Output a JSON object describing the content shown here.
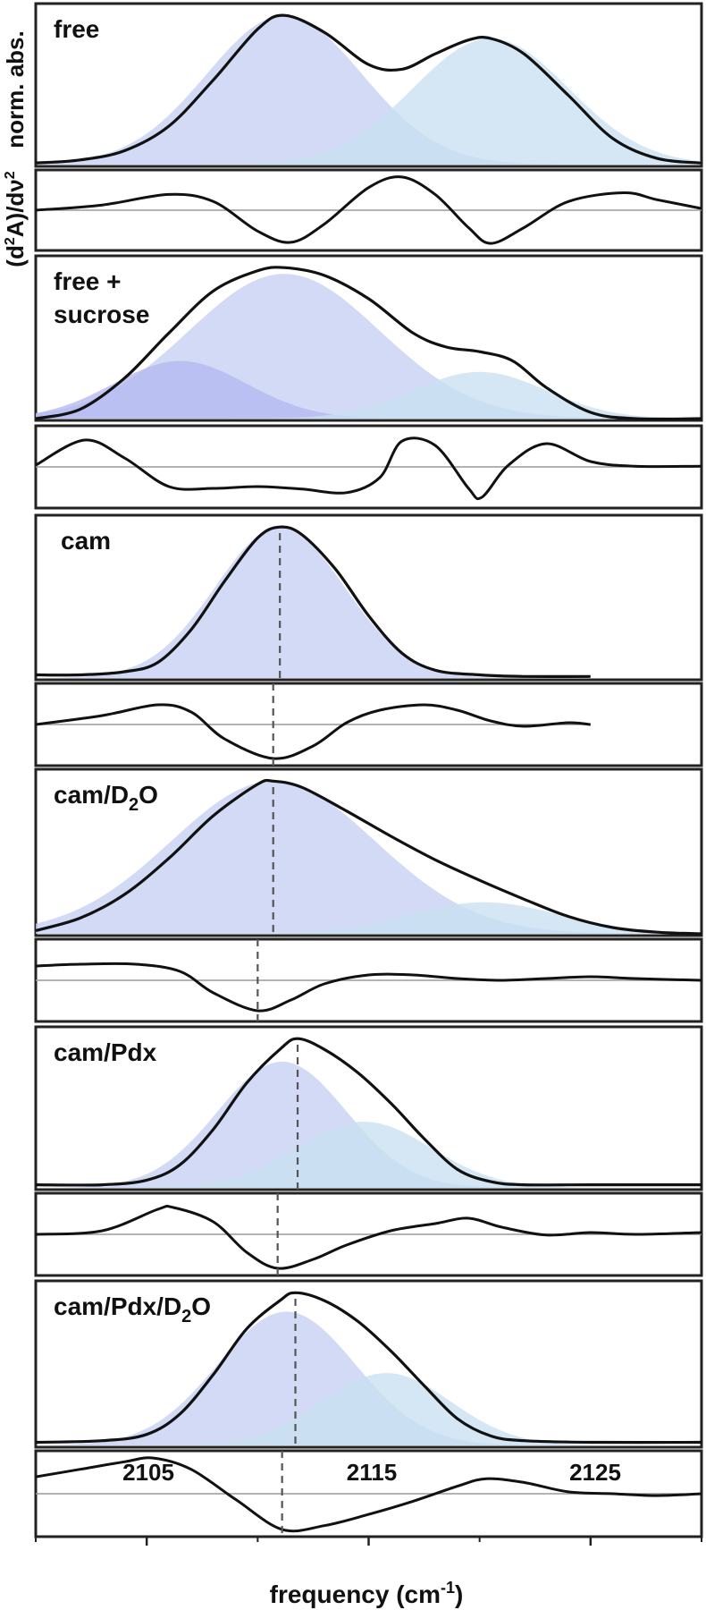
{
  "chart_data": {
    "type": "area",
    "xlabel": "frequency (cm",
    "xlabel_sup": "-1",
    "xlabel_end": ")",
    "ylabel_top": "norm. abs.",
    "ylabel_bottom_main": "(d",
    "ylabel_bottom_sup": "2",
    "ylabel_bottom_mid": "A)/d",
    "ylabel_bottom_nu": "ν",
    "ylabel_bottom_sup2": "2",
    "xlim": [
      2100,
      2130
    ],
    "xticks": [
      "2105",
      "2115",
      "2125"
    ],
    "xtick_values": [
      2105,
      2115,
      2125
    ],
    "fill_colors": {
      "component_main": "#c5d0f2",
      "component_side": "#c9e0f2",
      "component_violet": "#b3b8f0",
      "overlap": "#a3bde9"
    },
    "panels": [
      {
        "label": "free",
        "label_sub": "",
        "label_line2": "",
        "marker_abs": null,
        "marker_deriv": null,
        "components": [
          {
            "center": 2111.2,
            "width": 3.5,
            "amp": 0.97,
            "color": "component_main"
          },
          {
            "center": 2120.5,
            "width": 3.5,
            "amp": 0.82,
            "color": "component_side"
          }
        ],
        "abs_curve": {
          "x": [
            2100,
            2102,
            2104,
            2106,
            2108,
            2110,
            2111.2,
            2113,
            2115,
            2116.5,
            2118,
            2119.5,
            2120.5,
            2122,
            2124,
            2126,
            2128,
            2130
          ],
          "y": [
            0.01,
            0.03,
            0.09,
            0.25,
            0.55,
            0.88,
            0.97,
            0.86,
            0.65,
            0.62,
            0.72,
            0.81,
            0.82,
            0.72,
            0.45,
            0.17,
            0.04,
            0.01
          ]
        },
        "deriv_curve": {
          "x": [
            2100,
            2103,
            2106,
            2108,
            2110,
            2111.5,
            2113,
            2115,
            2116.5,
            2118,
            2119.5,
            2120.5,
            2122,
            2124,
            2126.5,
            2128,
            2130
          ],
          "y": [
            0.0,
            0.15,
            0.45,
            0.25,
            -0.6,
            -0.92,
            -0.4,
            0.65,
            0.95,
            0.45,
            -0.5,
            -0.95,
            -0.5,
            0.25,
            0.5,
            0.3,
            0.05
          ]
        }
      },
      {
        "label": "free +",
        "label_sub": "",
        "label_line2": "sucrose",
        "marker_abs": null,
        "marker_deriv": null,
        "components": [
          {
            "center": 2111.2,
            "width": 4.3,
            "amp": 0.93,
            "color": "component_main"
          },
          {
            "center": 2106.5,
            "width": 3.0,
            "amp": 0.37,
            "color": "component_violet"
          },
          {
            "center": 2120.0,
            "width": 3.0,
            "amp": 0.3,
            "color": "component_side"
          }
        ],
        "abs_curve": {
          "x": [
            2100,
            2102,
            2104,
            2106,
            2108,
            2110,
            2111.2,
            2113,
            2115,
            2117,
            2118.5,
            2120,
            2121.5,
            2123,
            2125,
            2127,
            2130
          ],
          "y": [
            0.0,
            0.06,
            0.26,
            0.55,
            0.82,
            0.95,
            0.97,
            0.92,
            0.77,
            0.55,
            0.46,
            0.43,
            0.37,
            0.2,
            0.04,
            0.0,
            0.0
          ]
        },
        "deriv_curve": {
          "x": [
            2100,
            2102.2,
            2104,
            2106,
            2108,
            2110,
            2112,
            2114,
            2115.5,
            2116.5,
            2118,
            2119.5,
            2120.1,
            2121.3,
            2123,
            2125,
            2127,
            2130
          ],
          "y": [
            0.05,
            0.75,
            0.25,
            -0.55,
            -0.6,
            -0.55,
            -0.62,
            -0.72,
            -0.3,
            0.72,
            0.6,
            -0.6,
            -0.85,
            0.05,
            0.65,
            0.15,
            0.02,
            0.02
          ]
        }
      },
      {
        "label": "cam",
        "label_sub": "",
        "label_line2": "",
        "marker_abs": 2111.0,
        "marker_deriv": 2110.7,
        "xmax_curve": 2125,
        "components": [
          {
            "center": 2111.0,
            "width": 2.9,
            "amp": 0.97,
            "color": "component_main"
          }
        ],
        "abs_curve": {
          "x": [
            2100,
            2102,
            2104,
            2105.5,
            2107,
            2108.5,
            2110,
            2111.0,
            2112,
            2113.5,
            2115,
            2116.5,
            2118,
            2120,
            2122,
            2125
          ],
          "y": [
            0.02,
            0.02,
            0.04,
            0.1,
            0.31,
            0.62,
            0.9,
            0.97,
            0.92,
            0.7,
            0.4,
            0.16,
            0.05,
            0.02,
            0.01,
            0.01
          ]
        },
        "deriv_curve": {
          "x": [
            2100,
            2103,
            2105.5,
            2107,
            2108.5,
            2110.7,
            2112.5,
            2114,
            2115.5,
            2117.5,
            2119,
            2120.5,
            2122,
            2124,
            2125
          ],
          "y": [
            0.0,
            0.25,
            0.55,
            0.35,
            -0.4,
            -0.95,
            -0.6,
            0.05,
            0.4,
            0.55,
            0.4,
            0.1,
            -0.05,
            0.05,
            0.0
          ]
        }
      },
      {
        "label": "cam/D",
        "label_sub": "2",
        "label_tail": "O",
        "label_line2": "",
        "marker_abs": 2110.7,
        "marker_deriv": 2110.0,
        "components": [
          {
            "center": 2110.7,
            "width": 4.6,
            "amp": 0.97,
            "color": "component_main"
          },
          {
            "center": 2120.2,
            "width": 3.4,
            "amp": 0.2,
            "color": "component_side"
          }
        ],
        "abs_curve": {
          "x": [
            2100,
            2102,
            2104,
            2106,
            2108,
            2110,
            2110.7,
            2112,
            2114,
            2116,
            2118,
            2120,
            2122,
            2124,
            2126,
            2128,
            2130
          ],
          "y": [
            0.02,
            0.1,
            0.25,
            0.48,
            0.75,
            0.95,
            0.97,
            0.93,
            0.78,
            0.62,
            0.47,
            0.34,
            0.22,
            0.11,
            0.04,
            0.01,
            0.0
          ]
        },
        "deriv_curve": {
          "x": [
            2100,
            2102,
            2104.5,
            2106.5,
            2108,
            2110.0,
            2111.5,
            2113,
            2115,
            2117,
            2119,
            2121,
            2123,
            2125,
            2127,
            2130
          ],
          "y": [
            0.4,
            0.45,
            0.45,
            0.25,
            -0.35,
            -0.85,
            -0.55,
            -0.1,
            0.15,
            0.15,
            0.05,
            0.0,
            0.05,
            0.1,
            0.05,
            0.0
          ]
        }
      },
      {
        "label": "cam/Pdx",
        "label_sub": "",
        "label_line2": "",
        "marker_abs": 2111.8,
        "marker_deriv": 2110.9,
        "components": [
          {
            "center": 2111.1,
            "width": 2.9,
            "amp": 0.82,
            "color": "component_main"
          },
          {
            "center": 2114.8,
            "width": 3.0,
            "amp": 0.43,
            "color": "component_side"
          }
        ],
        "abs_curve": {
          "x": [
            2100,
            2103,
            2105,
            2106.5,
            2108,
            2109.5,
            2111,
            2111.8,
            2113,
            2114.5,
            2116,
            2117.5,
            2119,
            2120.5,
            2122,
            2125,
            2130
          ],
          "y": [
            0.02,
            0.02,
            0.05,
            0.15,
            0.38,
            0.68,
            0.9,
            0.97,
            0.9,
            0.75,
            0.55,
            0.32,
            0.12,
            0.04,
            0.02,
            0.02,
            0.02
          ]
        },
        "deriv_curve": {
          "x": [
            2100,
            2103,
            2105.5,
            2106.2,
            2108,
            2109.5,
            2110.9,
            2112.5,
            2114,
            2116,
            2118,
            2119.5,
            2121,
            2123,
            2125,
            2127,
            2130
          ],
          "y": [
            0.0,
            0.1,
            0.7,
            0.75,
            0.35,
            -0.5,
            -0.95,
            -0.7,
            -0.3,
            0.1,
            0.3,
            0.45,
            0.2,
            -0.02,
            0.05,
            0.0,
            0.05
          ]
        }
      },
      {
        "label": "cam/Pdx/D",
        "label_sub": "2",
        "label_tail": "O",
        "label_line2": "",
        "marker_abs": 2111.7,
        "marker_deriv": 2111.1,
        "components": [
          {
            "center": 2111.3,
            "width": 3.1,
            "amp": 0.85,
            "color": "component_main"
          },
          {
            "center": 2115.8,
            "width": 2.9,
            "amp": 0.46,
            "color": "component_side"
          }
        ],
        "abs_curve": {
          "x": [
            2100,
            2103,
            2105,
            2106.5,
            2108,
            2109.5,
            2111,
            2111.7,
            2113,
            2114.5,
            2116,
            2117.5,
            2119,
            2120.5,
            2122,
            2125,
            2130
          ],
          "y": [
            0.02,
            0.03,
            0.07,
            0.2,
            0.45,
            0.74,
            0.92,
            0.97,
            0.92,
            0.79,
            0.6,
            0.38,
            0.17,
            0.06,
            0.03,
            0.02,
            0.02
          ]
        },
        "deriv_curve": {
          "x": [
            2100,
            2102,
            2104,
            2105.3,
            2107,
            2109,
            2111.1,
            2113,
            2115,
            2117,
            2119,
            2120.3,
            2122,
            2124,
            2126,
            2128,
            2130
          ],
          "y": [
            0.45,
            0.65,
            0.85,
            0.95,
            0.65,
            -0.15,
            -0.95,
            -0.85,
            -0.55,
            -0.2,
            0.2,
            0.4,
            0.3,
            0.05,
            0.0,
            -0.05,
            0.0
          ]
        }
      }
    ]
  }
}
